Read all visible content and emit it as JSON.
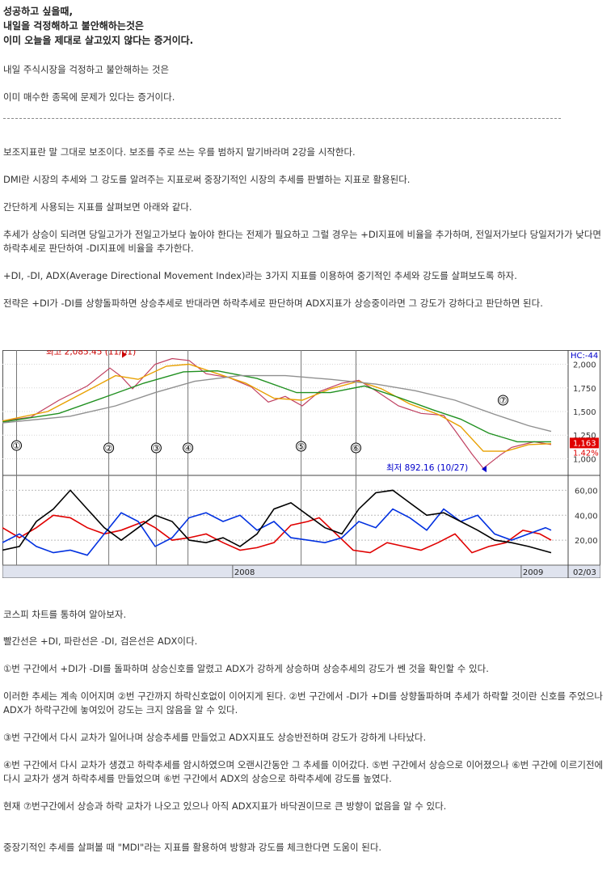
{
  "article": {
    "headline": [
      "성공하고 싶을때,",
      "내일을 걱정해하고 불안해하는것은",
      "이미 오늘을 제대로 살고있지 않다는 증거이다."
    ],
    "intro": [
      "내일 주식시장을 걱정하고 불안해하는 것은",
      "이미 매수한 종목에 문제가 있다는 증거이다."
    ],
    "body": [
      "보조지표란 말 그대로 보조이다. 보조를 주로 쓰는 우를 범하지 말기바라며 2강을 시작한다.",
      "DMI란 시장의 추세와 그 강도를 알려주는 지표로써 중장기적인 시장의 추세를 판별하는 지표로 활용된다.",
      "간단하게 사용되는 지표를 살펴보면 아래와 같다.",
      "추세가 상승이 되려면 당일고가가 전일고가보다 높아야 한다는 전제가 필요하고 그럴 경우는 +DI지표에 비율을 추가하며, 전일저가보다 당일저가가 낮다면 하락추세로 판단하여 -DI지표에 비율을 추가한다.",
      "+DI, -DI, ADX(Average Directional Movement Index)라는 3가지 지표를 이용하여 중기적인 추세와 강도를 살펴보도록 하자.",
      "전략은 +DI가 -DI를 상향돌파하면 상승추세로 반대라면 하락추세로 판단하며 ADX지표가 상승중이라면 그 강도가 강하다고 판단하면 된다."
    ],
    "after": [
      "코스피 차트를 통하여 알아보자.",
      "빨간선은 +DI, 파란선은 -DI, 검은선은 ADX이다.",
      "①번 구간에서 +DI가 -DI를 돌파하며 상승신호를 알렸고 ADX가 강하게 상승하며 상승추세의 강도가 쎈 것을 확인할 수 있다.",
      "이러한 추세는 계속 이어지며 ②번 구간까지 하락신호없이 이어지게 된다. ②번 구간에서 -DI가 +DI를 상향돌파하며 추세가 하락할 것이란 신호를 주었으나 ADX가 하락구간에 놓여있어 강도는 크지 않음을 알 수 있다.",
      "③번 구간에서 다시 교차가 일어나며 상승추세를 만들었고 ADX지표도 상승반전하며 강도가 강하게 나타났다.",
      "④번 구간에서 다시 교차가 생겼고 하락추세를 암시하였으며 오랜시간동안 그 추세를 이어갔다. ⑤번 구간에서 상승으로 이어졌으나 ⑥번 구간에 이르기전에 다시 교차가 생겨 하락추세를 만들었으며  ⑥번 구간에서 ADX의 상승으로 하락추세에 강도를 높였다.",
      "현재 ⑦번구간에서 상승과 하락 교차가 나오고 있으나 아직 ADX지표가 바닥권이므로 큰 방향이 없음을 알 수 있다.",
      "중장기적인 추세를 살펴볼 때 \"MDI\"라는 지표를 활용하여 방향과 강도를 체크한다면 도움이 된다."
    ]
  },
  "chart_data": [
    {
      "type": "line",
      "panel": "price",
      "y_ticks": [
        "2,000",
        "1,750",
        "1,500",
        "1,250",
        "1,000"
      ],
      "ylim": [
        850,
        2150
      ],
      "top_right_label": "HC:-44",
      "price_box": "1,163",
      "pct_label": "1.42%",
      "annotations": [
        {
          "label": "최고 2,085.45 (11/01)",
          "color": "#cc0000",
          "t": 0.22,
          "y": 2085
        },
        {
          "label": "최저 892.16 (10/27)",
          "color": "#0000cc",
          "t": 0.85,
          "y": 892
        }
      ],
      "markers": [
        {
          "label": "①",
          "t": 0.025
        },
        {
          "label": "②",
          "t": 0.188
        },
        {
          "label": "③",
          "t": 0.272
        },
        {
          "label": "④",
          "t": 0.328
        },
        {
          "label": "⑤",
          "t": 0.528
        },
        {
          "label": "⑥",
          "t": 0.625
        },
        {
          "label": "⑦",
          "t": 0.885
        }
      ],
      "series": [
        {
          "color": "#c04060",
          "points": [
            [
              0,
              1400
            ],
            [
              0.05,
              1440
            ],
            [
              0.1,
              1620
            ],
            [
              0.15,
              1770
            ],
            [
              0.19,
              1960
            ],
            [
              0.21,
              1870
            ],
            [
              0.23,
              1740
            ],
            [
              0.27,
              2000
            ],
            [
              0.3,
              2060
            ],
            [
              0.33,
              2040
            ],
            [
              0.36,
              1900
            ],
            [
              0.4,
              1860
            ],
            [
              0.44,
              1760
            ],
            [
              0.47,
              1600
            ],
            [
              0.5,
              1660
            ],
            [
              0.53,
              1560
            ],
            [
              0.56,
              1710
            ],
            [
              0.6,
              1800
            ],
            [
              0.63,
              1830
            ],
            [
              0.66,
              1720
            ],
            [
              0.7,
              1560
            ],
            [
              0.74,
              1480
            ],
            [
              0.78,
              1460
            ],
            [
              0.8,
              1300
            ],
            [
              0.83,
              1050
            ],
            [
              0.85,
              900
            ],
            [
              0.88,
              1040
            ],
            [
              0.9,
              1120
            ],
            [
              0.94,
              1180
            ],
            [
              0.97,
              1150
            ]
          ]
        },
        {
          "color": "#e8a000",
          "points": [
            [
              0,
              1400
            ],
            [
              0.08,
              1500
            ],
            [
              0.15,
              1720
            ],
            [
              0.2,
              1880
            ],
            [
              0.24,
              1840
            ],
            [
              0.29,
              1980
            ],
            [
              0.33,
              2000
            ],
            [
              0.38,
              1900
            ],
            [
              0.43,
              1800
            ],
            [
              0.48,
              1640
            ],
            [
              0.53,
              1620
            ],
            [
              0.58,
              1740
            ],
            [
              0.63,
              1820
            ],
            [
              0.67,
              1740
            ],
            [
              0.72,
              1580
            ],
            [
              0.77,
              1470
            ],
            [
              0.81,
              1340
            ],
            [
              0.85,
              1080
            ],
            [
              0.89,
              1080
            ],
            [
              0.93,
              1150
            ],
            [
              0.97,
              1160
            ]
          ]
        },
        {
          "color": "#209020",
          "points": [
            [
              0,
              1390
            ],
            [
              0.1,
              1480
            ],
            [
              0.18,
              1650
            ],
            [
              0.25,
              1800
            ],
            [
              0.32,
              1920
            ],
            [
              0.38,
              1930
            ],
            [
              0.45,
              1850
            ],
            [
              0.52,
              1700
            ],
            [
              0.58,
              1700
            ],
            [
              0.64,
              1770
            ],
            [
              0.7,
              1650
            ],
            [
              0.76,
              1520
            ],
            [
              0.81,
              1420
            ],
            [
              0.86,
              1270
            ],
            [
              0.91,
              1180
            ],
            [
              0.97,
              1180
            ]
          ]
        },
        {
          "color": "#909090",
          "points": [
            [
              0,
              1380
            ],
            [
              0.12,
              1450
            ],
            [
              0.2,
              1560
            ],
            [
              0.27,
              1700
            ],
            [
              0.34,
              1820
            ],
            [
              0.42,
              1880
            ],
            [
              0.5,
              1880
            ],
            [
              0.58,
              1840
            ],
            [
              0.66,
              1790
            ],
            [
              0.73,
              1720
            ],
            [
              0.8,
              1620
            ],
            [
              0.87,
              1470
            ],
            [
              0.93,
              1350
            ],
            [
              0.97,
              1290
            ]
          ]
        }
      ]
    },
    {
      "type": "line",
      "panel": "dmi",
      "y_ticks": [
        "60,00",
        "40,00",
        "20,00"
      ],
      "ylim": [
        0,
        70
      ],
      "x_ticks": [
        {
          "label": "2008",
          "t": 0.407
        },
        {
          "label": "2009",
          "t": 0.917
        }
      ],
      "x_end_label": "02/03",
      "series": [
        {
          "name": "+DI",
          "color": "#e00000",
          "points": [
            [
              0,
              30
            ],
            [
              0.03,
              22
            ],
            [
              0.06,
              30
            ],
            [
              0.09,
              40
            ],
            [
              0.12,
              38
            ],
            [
              0.15,
              30
            ],
            [
              0.18,
              25
            ],
            [
              0.21,
              28
            ],
            [
              0.25,
              35
            ],
            [
              0.27,
              30
            ],
            [
              0.3,
              20
            ],
            [
              0.33,
              22
            ],
            [
              0.36,
              25
            ],
            [
              0.39,
              18
            ],
            [
              0.42,
              12
            ],
            [
              0.45,
              14
            ],
            [
              0.48,
              18
            ],
            [
              0.51,
              32
            ],
            [
              0.54,
              35
            ],
            [
              0.56,
              38
            ],
            [
              0.59,
              25
            ],
            [
              0.62,
              12
            ],
            [
              0.65,
              10
            ],
            [
              0.68,
              18
            ],
            [
              0.71,
              15
            ],
            [
              0.74,
              12
            ],
            [
              0.77,
              18
            ],
            [
              0.8,
              25
            ],
            [
              0.83,
              10
            ],
            [
              0.86,
              15
            ],
            [
              0.89,
              18
            ],
            [
              0.92,
              28
            ],
            [
              0.95,
              25
            ],
            [
              0.97,
              20
            ]
          ]
        },
        {
          "name": "-DI",
          "color": "#0030e0",
          "points": [
            [
              0,
              18
            ],
            [
              0.03,
              25
            ],
            [
              0.06,
              15
            ],
            [
              0.09,
              10
            ],
            [
              0.12,
              12
            ],
            [
              0.15,
              8
            ],
            [
              0.18,
              25
            ],
            [
              0.21,
              42
            ],
            [
              0.24,
              35
            ],
            [
              0.27,
              15
            ],
            [
              0.3,
              22
            ],
            [
              0.33,
              38
            ],
            [
              0.36,
              42
            ],
            [
              0.39,
              35
            ],
            [
              0.42,
              40
            ],
            [
              0.45,
              28
            ],
            [
              0.48,
              35
            ],
            [
              0.51,
              22
            ],
            [
              0.54,
              20
            ],
            [
              0.57,
              18
            ],
            [
              0.6,
              22
            ],
            [
              0.63,
              35
            ],
            [
              0.66,
              30
            ],
            [
              0.69,
              45
            ],
            [
              0.72,
              38
            ],
            [
              0.75,
              28
            ],
            [
              0.78,
              45
            ],
            [
              0.81,
              35
            ],
            [
              0.84,
              40
            ],
            [
              0.87,
              25
            ],
            [
              0.9,
              20
            ],
            [
              0.93,
              25
            ],
            [
              0.96,
              30
            ],
            [
              0.97,
              28
            ]
          ]
        },
        {
          "name": "ADX",
          "color": "#000000",
          "points": [
            [
              0,
              12
            ],
            [
              0.03,
              15
            ],
            [
              0.06,
              35
            ],
            [
              0.09,
              45
            ],
            [
              0.12,
              60
            ],
            [
              0.15,
              45
            ],
            [
              0.18,
              30
            ],
            [
              0.21,
              20
            ],
            [
              0.24,
              30
            ],
            [
              0.27,
              40
            ],
            [
              0.3,
              35
            ],
            [
              0.33,
              20
            ],
            [
              0.36,
              18
            ],
            [
              0.39,
              22
            ],
            [
              0.42,
              15
            ],
            [
              0.45,
              25
            ],
            [
              0.48,
              45
            ],
            [
              0.51,
              50
            ],
            [
              0.54,
              40
            ],
            [
              0.57,
              30
            ],
            [
              0.6,
              25
            ],
            [
              0.63,
              45
            ],
            [
              0.66,
              58
            ],
            [
              0.69,
              60
            ],
            [
              0.72,
              50
            ],
            [
              0.75,
              40
            ],
            [
              0.78,
              42
            ],
            [
              0.81,
              35
            ],
            [
              0.84,
              28
            ],
            [
              0.87,
              20
            ],
            [
              0.9,
              18
            ],
            [
              0.93,
              15
            ],
            [
              0.97,
              10
            ]
          ]
        }
      ]
    }
  ]
}
